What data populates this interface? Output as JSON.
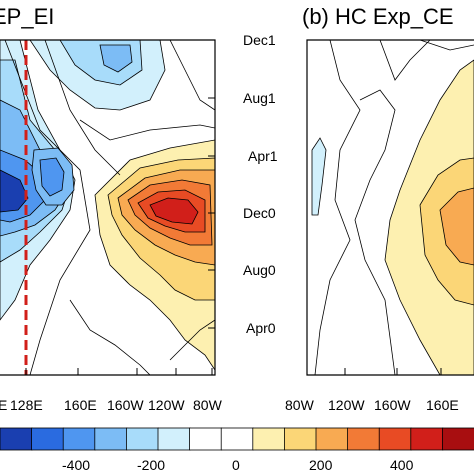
{
  "chart_data": [
    {
      "type": "heatmap",
      "panel": "a",
      "title": "EP_EI",
      "xlabel": "",
      "ylabel": "",
      "x_tick_labels": [
        "E",
        "128E",
        "160E",
        "160W",
        "120W",
        "80W"
      ],
      "y_tick_labels": [
        "Dec1",
        "Aug1",
        "Apr1",
        "Dec0",
        "Aug0",
        "Apr0"
      ],
      "reference_line_label": "128E",
      "features": [
        {
          "lon": "120E",
          "time": "Dec0",
          "value": -480
        },
        {
          "lon": "140E",
          "time": "Apr1",
          "value": -300
        },
        {
          "lon": "155E",
          "time": "Dec1",
          "value": -150
        },
        {
          "lon": "115W",
          "time": "Dec0",
          "value": 440
        },
        {
          "lon": "100W",
          "time": "Dec0",
          "value": 300
        },
        {
          "lon": "145W",
          "time": "Aug0",
          "value": 80
        }
      ]
    },
    {
      "type": "heatmap",
      "panel": "b",
      "title": "(b) HC Exp_CE",
      "xlabel": "",
      "ylabel": "",
      "x_tick_labels": [
        "80W",
        "120W",
        "160W",
        "160E"
      ],
      "y_tick_labels": [
        "Dec1",
        "Aug1",
        "Apr1",
        "Dec0",
        "Aug0",
        "Apr0"
      ],
      "features": [
        {
          "lon": "160E",
          "time": "Dec0",
          "value": 250
        },
        {
          "lon": "170E",
          "time": "Aug0",
          "value": 100
        },
        {
          "lon": "95W",
          "time": "Apr1",
          "value": -60
        }
      ]
    }
  ],
  "colorbar": {
    "ticks": [
      "-400",
      "-200",
      "0",
      "200",
      "400"
    ],
    "colors": [
      "#1a3fb0",
      "#2a6be0",
      "#4f96f0",
      "#7cbcf5",
      "#a8dcfa",
      "#d2f0fc",
      "#ffffff",
      "#ffffff",
      "#fdf0b0",
      "#fbd677",
      "#f8aa52",
      "#f27a36",
      "#e84b24",
      "#d11f1a",
      "#a80e10"
    ]
  }
}
